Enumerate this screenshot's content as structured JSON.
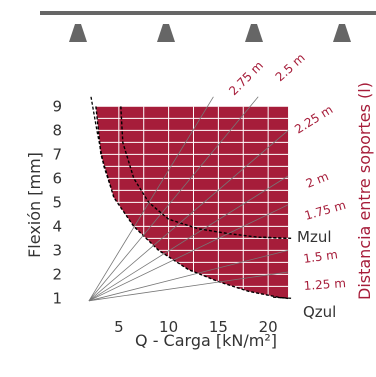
{
  "chart_data": {
    "type": "area",
    "title": "",
    "xlabel": "Q - Carga [kN/m²]",
    "ylabel": "Flexión [mm]",
    "right_label": "Distancia entre soportes (l)",
    "x_ticks": [
      5,
      10,
      15,
      20
    ],
    "y_ticks": [
      1,
      2,
      3,
      4,
      5,
      6,
      7,
      8,
      9
    ],
    "xlim": [
      1.5,
      23
    ],
    "ylim": [
      0.6,
      9.6
    ],
    "grid": true,
    "colors": {
      "fill": "#a61d3a",
      "grid": "#ffffff",
      "text": "#333333",
      "accent": "#a61d3a",
      "support": "#666666"
    },
    "span_lines": [
      {
        "label": "2.75 m",
        "end": [
          14.5,
          9.4
        ]
      },
      {
        "label": "2.5 m",
        "end": [
          19.0,
          9.4
        ]
      },
      {
        "label": "2.25 m",
        "end": [
          22.0,
          8.0
        ]
      },
      {
        "label": "2 m",
        "end": [
          22.0,
          6.1
        ]
      },
      {
        "label": "1.75 m",
        "end": [
          22.0,
          4.9
        ]
      },
      {
        "label": "1.5 m",
        "end": [
          22.0,
          3.0
        ]
      },
      {
        "label": "1.25 m",
        "end": [
          22.0,
          2.1
        ]
      }
    ],
    "span_origin": [
      2.0,
      0.9
    ],
    "qzul_curve": {
      "label": "Qzul",
      "points": [
        [
          2.7,
          9.0
        ],
        [
          3.2,
          7.0
        ],
        [
          4.5,
          5.2
        ],
        [
          6.5,
          4.0
        ],
        [
          9.0,
          3.0
        ],
        [
          12.0,
          2.2
        ],
        [
          15.0,
          1.7
        ],
        [
          18.0,
          1.3
        ],
        [
          21.0,
          1.05
        ],
        [
          22.0,
          1.0
        ]
      ]
    },
    "mzul_curve": {
      "label": "Mzul",
      "points": [
        [
          5.2,
          9.0
        ],
        [
          5.4,
          7.5
        ],
        [
          6.5,
          6.0
        ],
        [
          8.0,
          5.0
        ],
        [
          10.0,
          4.3
        ],
        [
          13.0,
          3.9
        ],
        [
          16.0,
          3.7
        ],
        [
          19.0,
          3.55
        ],
        [
          22.0,
          3.5
        ]
      ]
    },
    "left_dash_curve": {
      "points": [
        [
          2.2,
          9.4
        ],
        [
          2.8,
          8.0
        ],
        [
          3.5,
          6.5
        ],
        [
          4.3,
          5.5
        ]
      ]
    }
  }
}
